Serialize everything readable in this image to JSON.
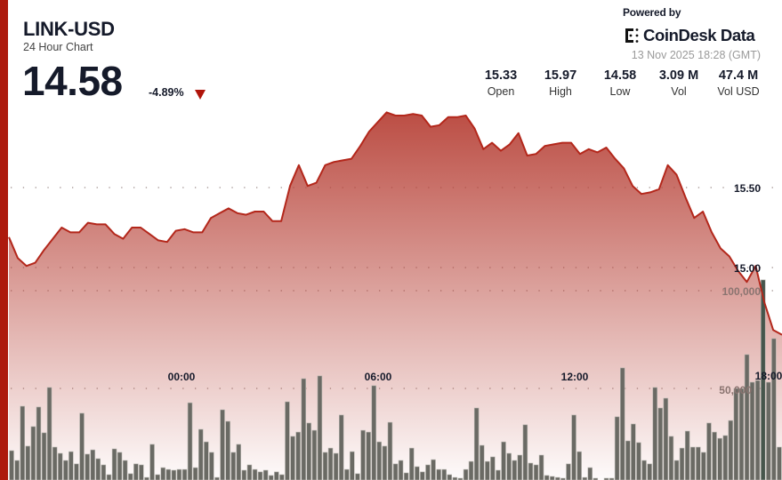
{
  "header": {
    "title": "LINK-USD",
    "subtitle": "24 Hour Chart",
    "price": "14.58",
    "change": "-4.89%",
    "change_direction": "down",
    "powered_by": "Powered by",
    "brand": "CoinDesk Data",
    "timestamp": "13 Nov 2025 18:28 (GMT)"
  },
  "stats": [
    {
      "value": "15.33",
      "label": "Open"
    },
    {
      "value": "15.97",
      "label": "High"
    },
    {
      "value": "14.58",
      "label": "Low"
    },
    {
      "value": "3.09 M",
      "label": "Vol"
    },
    {
      "value": "47.4 M",
      "label": "Vol USD"
    }
  ],
  "colors": {
    "accent": "#ad1a0d",
    "line": "#b3271b",
    "fill_top": "#b8443a",
    "volume_bar": "#6a6a64",
    "volume_bar_highlight": "#46564c"
  },
  "chart_data": {
    "type": "area",
    "x_tick_labels": [
      "00:00",
      "06:00",
      "12:00",
      "18:00"
    ],
    "price": {
      "tick_labels": [
        "15.50",
        "15.00"
      ],
      "ticks": [
        15.5,
        15.0
      ],
      "values": [
        15.19,
        15.06,
        15.01,
        15.03,
        15.11,
        15.18,
        15.25,
        15.22,
        15.22,
        15.28,
        15.27,
        15.27,
        15.21,
        15.18,
        15.25,
        15.25,
        15.21,
        15.17,
        15.16,
        15.23,
        15.24,
        15.22,
        15.22,
        15.31,
        15.34,
        15.37,
        15.34,
        15.33,
        15.35,
        15.35,
        15.29,
        15.29,
        15.51,
        15.64,
        15.51,
        15.53,
        15.64,
        15.66,
        15.67,
        15.68,
        15.76,
        15.85,
        15.91,
        15.97,
        15.95,
        15.95,
        15.96,
        15.95,
        15.88,
        15.89,
        15.94,
        15.94,
        15.95,
        15.87,
        15.74,
        15.78,
        15.73,
        15.77,
        15.84,
        15.7,
        15.71,
        15.76,
        15.77,
        15.78,
        15.78,
        15.71,
        15.74,
        15.72,
        15.75,
        15.68,
        15.62,
        15.51,
        15.46,
        15.47,
        15.49,
        15.64,
        15.58,
        15.44,
        15.31,
        15.35,
        15.22,
        15.12,
        15.07,
        14.98,
        14.91,
        15.01,
        14.78,
        14.61,
        14.58
      ]
    },
    "volume": {
      "tick_labels": [
        "100,000",
        "50,000"
      ],
      "ticks": [
        100000,
        50000
      ],
      "highlight_index": 139,
      "values": [
        18200,
        13200,
        40900,
        20500,
        30500,
        40500,
        27300,
        50500,
        20000,
        16800,
        13200,
        17700,
        11400,
        37300,
        16400,
        18600,
        14100,
        10900,
        5900,
        19100,
        17300,
        13200,
        6400,
        11400,
        10900,
        4500,
        21400,
        5900,
        9500,
        8600,
        8200,
        8600,
        8600,
        42700,
        9500,
        29100,
        22700,
        17300,
        4500,
        39100,
        33200,
        17300,
        21400,
        8200,
        10900,
        8600,
        7300,
        8200,
        5500,
        7300,
        5900,
        43200,
        25500,
        27700,
        55000,
        32300,
        28600,
        56400,
        17300,
        19500,
        16800,
        36400,
        8600,
        17700,
        6400,
        28600,
        27700,
        51400,
        22700,
        20500,
        32700,
        11400,
        13200,
        6800,
        19500,
        10000,
        7300,
        10900,
        13600,
        8600,
        8600,
        5900,
        4500,
        4100,
        8600,
        12700,
        40000,
        20900,
        12700,
        15000,
        8200,
        22700,
        16800,
        13200,
        15900,
        31400,
        11800,
        10900,
        15900,
        5500,
        5000,
        4500,
        4100,
        11400,
        36400,
        17700,
        4500,
        9500,
        4100,
        3200,
        4100,
        4100,
        35500,
        60500,
        23200,
        31800,
        22300,
        13200,
        11400,
        50500,
        40000,
        45000,
        25500,
        13200,
        19500,
        28200,
        20000,
        20000,
        17300,
        32300,
        27700,
        24500,
        25900,
        33600,
        50000,
        50000,
        67300,
        53200,
        54100,
        105500,
        53200,
        75500,
        20000
      ]
    },
    "grid": "dotted horizontal"
  }
}
